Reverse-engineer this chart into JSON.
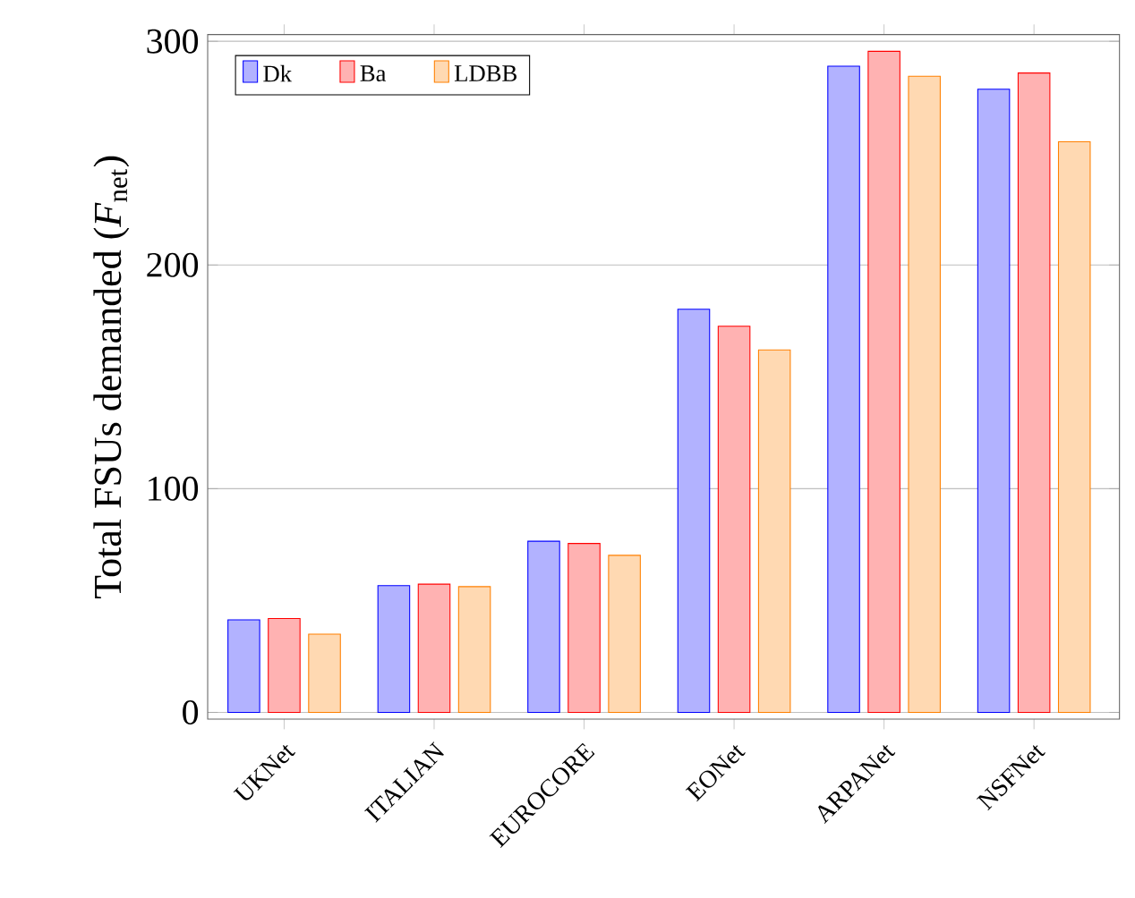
{
  "chart_data": {
    "type": "bar",
    "ylabel": "Total FSUs demanded (*F*$_{net}$)",
    "categories": [
      "UKNet",
      "ITALIAN",
      "EUROCORE",
      "EONet",
      "ARPANet",
      "NSFNet"
    ],
    "series": [
      {
        "name": "Dk",
        "color": "#0000ff",
        "values": [
          41.4,
          56.7,
          76.5,
          180.2,
          288.9,
          278.6
        ]
      },
      {
        "name": "Ba",
        "color": "#ff0000",
        "values": [
          42,
          57.3,
          75.5,
          172.6,
          295.5,
          285.8
        ]
      },
      {
        "name": "LDBB",
        "color": "#ff8000",
        "values": [
          35,
          56.2,
          70.2,
          162,
          284.4,
          255.1
        ]
      }
    ],
    "ylim": [
      -3,
      303
    ],
    "yticks": [
      0,
      100,
      200,
      300
    ],
    "grid": "y",
    "legend": "top left"
  }
}
